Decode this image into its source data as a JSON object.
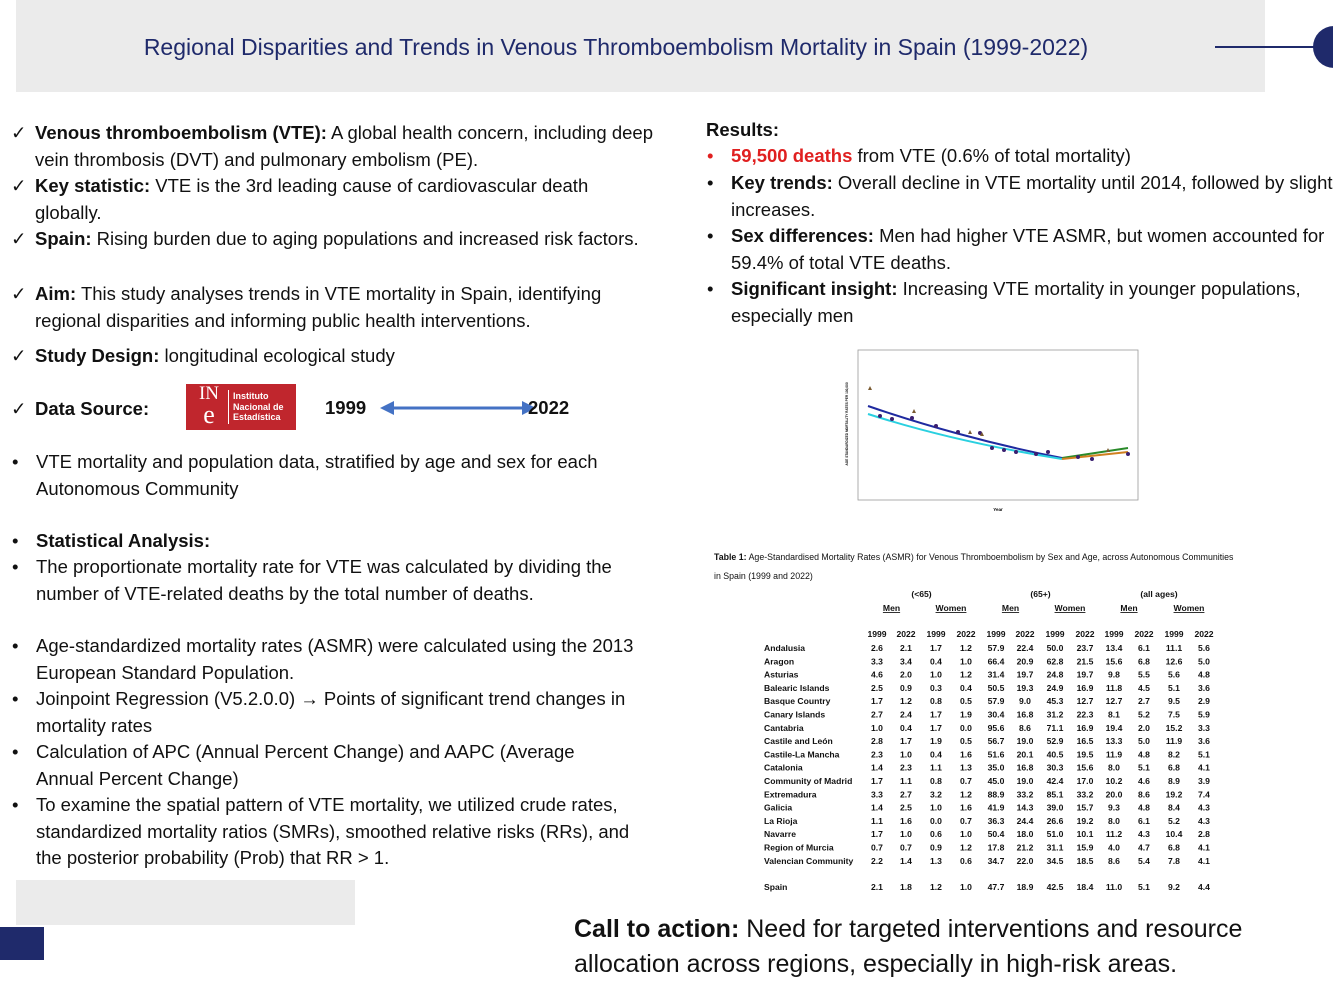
{
  "header": {
    "title": "Regional Disparities and Trends in Venous Thromboembolism Mortality in Spain (1999-2022)"
  },
  "intro": [
    {
      "label": "Venous thromboembolism (VTE):",
      "text": "A global health concern, including deep vein thrombosis (DVT) and pulmonary embolism (PE)."
    },
    {
      "label": "Key statistic:",
      "text": "VTE is the 3rd leading cause of cardiovascular death globally."
    },
    {
      "label": "Spain:",
      "text": "Rising burden due to aging populations and increased risk factors."
    },
    {
      "label": "Aim:",
      "text": "This study analyses trends in VTE mortality in Spain, identifying regional disparities and informing public health interventions."
    },
    {
      "label": "Study Design:",
      "text": "longitudinal ecological study"
    }
  ],
  "data_source": {
    "label": "Data Source:",
    "logo_mark": [
      "IN",
      "e"
    ],
    "logo_text": [
      "Instituto",
      "Nacional de",
      "Estadística"
    ],
    "start_year": "1999",
    "end_year": "2022"
  },
  "data_note": "VTE mortality and population data, stratified by age and sex for each Autonomous Community",
  "analysis": {
    "heading": "Statistical Analysis:",
    "items": [
      "The proportionate mortality rate for VTE was calculated by dividing the number of VTE-related deaths by the total number of deaths.",
      "Age-standardized mortality rates (ASMR) were calculated using the 2013 European Standard Population.",
      "Joinpoint Regression (V5.2.0.0) → Points of significant trend changes in mortality rates",
      "Calculation of APC (Annual Percent Change) and AAPC (Average Annual Percent Change)",
      "To examine the spatial pattern of VTE mortality, we utilized crude rates, standardized mortality ratios (SMRs), smoothed relative risks (RRs), and the posterior probability (Prob) that RR > 1."
    ]
  },
  "results": {
    "heading": "Results:",
    "items": [
      {
        "label": "59,500 deaths",
        "text": "from VTE (0.6% of total mortality)"
      },
      {
        "label": "Key trends:",
        "text": "Overall decline in VTE mortality until 2014, followed by slight increases."
      },
      {
        "label": "Sex differences:",
        "text": "Men had higher VTE ASMR, but women accounted for 59.4% of total VTE deaths."
      },
      {
        "label": "Significant insight:",
        "text": "Increasing VTE mortality in younger populations, especially men"
      }
    ]
  },
  "figure": {
    "y_label": "AGE STANDARDIZED MORTALITY RATES PER 100,000",
    "x_label": "Year"
  },
  "table": {
    "caption": [
      "Table 1:",
      "Age-Standardised Mortality Rates (ASMR) for Venous Thromboembolism by Sex and  Age, across Autonomous Communities",
      "in Spain (1999 and 2022)"
    ],
    "groups": [
      "(<65)",
      "(65+)",
      "(all ages)"
    ],
    "sexes": [
      "Men",
      "Women",
      "Men",
      "Women",
      "Men",
      "Women"
    ],
    "years": [
      "1999",
      "2022",
      "1999",
      "2022",
      "1999",
      "2022",
      "1999",
      "2022",
      "1999",
      "2022",
      "1999",
      "2022"
    ],
    "rows": [
      [
        "Andalusia",
        "2.6",
        "2.1",
        "1.7",
        "1.2",
        "57.9",
        "22.4",
        "50.0",
        "23.7",
        "13.4",
        "6.1",
        "11.1",
        "5.6"
      ],
      [
        "Aragon",
        "3.3",
        "3.4",
        "0.4",
        "1.0",
        "66.4",
        "20.9",
        "62.8",
        "21.5",
        "15.6",
        "6.8",
        "12.6",
        "5.0"
      ],
      [
        "Asturias",
        "4.6",
        "2.0",
        "1.0",
        "1.2",
        "31.4",
        "19.7",
        "24.8",
        "19.7",
        "9.8",
        "5.5",
        "5.6",
        "4.8"
      ],
      [
        "Balearic Islands",
        "2.5",
        "0.9",
        "0.3",
        "0.4",
        "50.5",
        "19.3",
        "24.9",
        "16.9",
        "11.8",
        "4.5",
        "5.1",
        "3.6"
      ],
      [
        "Basque Country",
        "1.7",
        "1.2",
        "0.8",
        "0.5",
        "57.9",
        "9.0",
        "45.3",
        "12.7",
        "12.7",
        "2.7",
        "9.5",
        "2.9"
      ],
      [
        "Canary Islands",
        "2.7",
        "2.4",
        "1.7",
        "1.9",
        "30.4",
        "16.8",
        "31.2",
        "22.3",
        "8.1",
        "5.2",
        "7.5",
        "5.9"
      ],
      [
        "Cantabria",
        "1.0",
        "0.4",
        "1.7",
        "0.0",
        "95.6",
        "8.6",
        "71.1",
        "16.9",
        "19.4",
        "2.0",
        "15.2",
        "3.3"
      ],
      [
        "Castile and León",
        "2.8",
        "1.7",
        "1.9",
        "0.5",
        "56.7",
        "19.0",
        "52.9",
        "16.5",
        "13.3",
        "5.0",
        "11.9",
        "3.6"
      ],
      [
        "Castile-La Mancha",
        "2.3",
        "1.0",
        "0.4",
        "1.6",
        "51.6",
        "20.1",
        "40.5",
        "19.5",
        "11.9",
        "4.8",
        "8.2",
        "5.1"
      ],
      [
        "Catalonia",
        "1.4",
        "2.3",
        "1.1",
        "1.3",
        "35.0",
        "16.8",
        "30.3",
        "15.6",
        "8.0",
        "5.1",
        "6.8",
        "4.1"
      ],
      [
        "Community of Madrid",
        "1.7",
        "1.1",
        "0.8",
        "0.7",
        "45.0",
        "19.0",
        "42.4",
        "17.0",
        "10.2",
        "4.6",
        "8.9",
        "3.9"
      ],
      [
        "Extremadura",
        "3.3",
        "2.7",
        "3.2",
        "1.2",
        "88.9",
        "33.2",
        "85.1",
        "33.2",
        "20.0",
        "8.6",
        "19.2",
        "7.4"
      ],
      [
        "Galicia",
        "1.4",
        "2.5",
        "1.0",
        "1.6",
        "41.9",
        "14.3",
        "39.0",
        "15.7",
        "9.3",
        "4.8",
        "8.4",
        "4.3"
      ],
      [
        "La Rioja",
        "1.1",
        "1.6",
        "0.0",
        "0.7",
        "36.3",
        "24.4",
        "26.6",
        "19.2",
        "8.0",
        "6.1",
        "5.2",
        "4.3"
      ],
      [
        "Navarre",
        "1.7",
        "1.0",
        "0.6",
        "1.0",
        "50.4",
        "18.0",
        "51.0",
        "10.1",
        "11.2",
        "4.3",
        "10.4",
        "2.8"
      ],
      [
        "Region of Murcia",
        "0.7",
        "0.7",
        "0.9",
        "1.2",
        "17.8",
        "21.2",
        "31.1",
        "15.9",
        "4.0",
        "4.7",
        "6.8",
        "4.1"
      ],
      [
        "Valencian Community",
        "2.2",
        "1.4",
        "1.3",
        "0.6",
        "34.7",
        "22.0",
        "34.5",
        "18.5",
        "8.6",
        "5.4",
        "7.8",
        "4.1"
      ],
      [
        "Spain",
        "2.1",
        "1.8",
        "1.2",
        "1.0",
        "47.7",
        "18.9",
        "42.5",
        "18.4",
        "11.0",
        "5.1",
        "9.2",
        "4.4"
      ]
    ]
  },
  "call_to_action": {
    "label": "Call to action:",
    "text": "Need for targeted interventions and resource allocation across regions, especially in high-risk areas."
  }
}
